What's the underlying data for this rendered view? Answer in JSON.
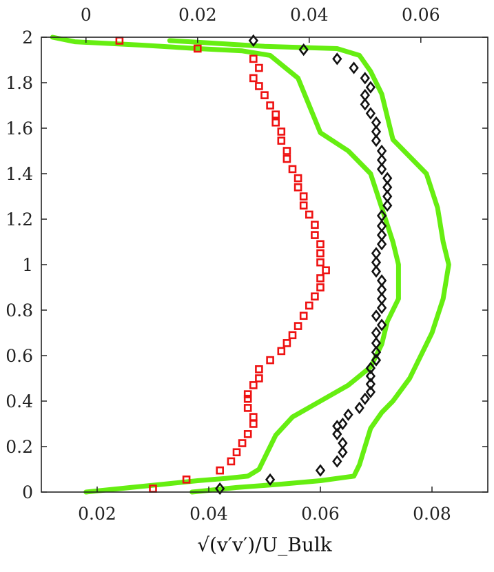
{
  "chart_data": {
    "type": "scatter",
    "xlabel": "√(v′v′)/U_Bulk",
    "ylabel": "",
    "ylim": [
      0,
      2
    ],
    "bottom_x_axis": {
      "range": [
        0.01,
        0.09
      ],
      "ticks": [
        0.02,
        0.04,
        0.06,
        0.08
      ],
      "tick_labels": [
        "0.02",
        "0.04",
        "0.06",
        "0.08"
      ]
    },
    "top_x_axis": {
      "range": [
        -0.008,
        0.072
      ],
      "ticks": [
        0,
        0.02,
        0.04,
        0.06
      ],
      "tick_labels": [
        "0",
        "0.02",
        "0.04",
        "0.06"
      ]
    },
    "y_ticks": [
      0,
      0.2,
      0.4,
      0.6,
      0.8,
      1,
      1.2,
      1.4,
      1.6,
      1.8,
      2
    ],
    "y_tick_labels": [
      "0",
      "0.2",
      "0.4",
      "0.6",
      "0.8",
      "1",
      "1.2",
      "1.4",
      "1.6",
      "1.8",
      "2"
    ],
    "grid": false,
    "series": [
      {
        "kind": "markers-square",
        "axis": "top",
        "color": "#ee1111",
        "points": [
          [
            0.012,
            0.015
          ],
          [
            0.018,
            0.055
          ],
          [
            0.024,
            0.095
          ],
          [
            0.026,
            0.135
          ],
          [
            0.027,
            0.175
          ],
          [
            0.028,
            0.215
          ],
          [
            0.029,
            0.255
          ],
          [
            0.03,
            0.3
          ],
          [
            0.03,
            0.33
          ],
          [
            0.029,
            0.37
          ],
          [
            0.029,
            0.41
          ],
          [
            0.029,
            0.43
          ],
          [
            0.03,
            0.47
          ],
          [
            0.031,
            0.5
          ],
          [
            0.031,
            0.54
          ],
          [
            0.033,
            0.58
          ],
          [
            0.035,
            0.62
          ],
          [
            0.036,
            0.655
          ],
          [
            0.037,
            0.69
          ],
          [
            0.038,
            0.73
          ],
          [
            0.039,
            0.775
          ],
          [
            0.04,
            0.82
          ],
          [
            0.041,
            0.86
          ],
          [
            0.042,
            0.9
          ],
          [
            0.042,
            0.94
          ],
          [
            0.043,
            0.975
          ],
          [
            0.042,
            1.01
          ],
          [
            0.042,
            1.05
          ],
          [
            0.042,
            1.09
          ],
          [
            0.041,
            1.13
          ],
          [
            0.041,
            1.175
          ],
          [
            0.04,
            1.22
          ],
          [
            0.039,
            1.26
          ],
          [
            0.039,
            1.3
          ],
          [
            0.038,
            1.34
          ],
          [
            0.038,
            1.38
          ],
          [
            0.037,
            1.42
          ],
          [
            0.036,
            1.465
          ],
          [
            0.036,
            1.5
          ],
          [
            0.035,
            1.545
          ],
          [
            0.035,
            1.585
          ],
          [
            0.034,
            1.625
          ],
          [
            0.034,
            1.66
          ],
          [
            0.033,
            1.7
          ],
          [
            0.032,
            1.745
          ],
          [
            0.031,
            1.785
          ],
          [
            0.03,
            1.82
          ],
          [
            0.031,
            1.865
          ],
          [
            0.03,
            1.905
          ],
          [
            0.02,
            1.95
          ],
          [
            0.006,
            1.985
          ]
        ]
      },
      {
        "kind": "markers-diamond",
        "axis": "bottom",
        "color": "#111111",
        "points": [
          [
            0.042,
            0.015
          ],
          [
            0.051,
            0.055
          ],
          [
            0.06,
            0.095
          ],
          [
            0.063,
            0.135
          ],
          [
            0.064,
            0.175
          ],
          [
            0.064,
            0.215
          ],
          [
            0.063,
            0.255
          ],
          [
            0.063,
            0.29
          ],
          [
            0.064,
            0.3
          ],
          [
            0.065,
            0.34
          ],
          [
            0.067,
            0.37
          ],
          [
            0.068,
            0.41
          ],
          [
            0.069,
            0.44
          ],
          [
            0.069,
            0.475
          ],
          [
            0.069,
            0.51
          ],
          [
            0.069,
            0.545
          ],
          [
            0.07,
            0.58
          ],
          [
            0.07,
            0.615
          ],
          [
            0.07,
            0.655
          ],
          [
            0.07,
            0.7
          ],
          [
            0.071,
            0.735
          ],
          [
            0.07,
            0.775
          ],
          [
            0.071,
            0.81
          ],
          [
            0.071,
            0.85
          ],
          [
            0.071,
            0.89
          ],
          [
            0.071,
            0.93
          ],
          [
            0.07,
            0.97
          ],
          [
            0.07,
            1.01
          ],
          [
            0.07,
            1.05
          ],
          [
            0.071,
            1.09
          ],
          [
            0.071,
            1.13
          ],
          [
            0.071,
            1.17
          ],
          [
            0.071,
            1.215
          ],
          [
            0.072,
            1.26
          ],
          [
            0.072,
            1.3
          ],
          [
            0.072,
            1.34
          ],
          [
            0.072,
            1.38
          ],
          [
            0.071,
            1.42
          ],
          [
            0.071,
            1.46
          ],
          [
            0.071,
            1.5
          ],
          [
            0.07,
            1.545
          ],
          [
            0.07,
            1.585
          ],
          [
            0.07,
            1.625
          ],
          [
            0.069,
            1.665
          ],
          [
            0.068,
            1.705
          ],
          [
            0.068,
            1.745
          ],
          [
            0.069,
            1.78
          ],
          [
            0.068,
            1.82
          ],
          [
            0.066,
            1.865
          ],
          [
            0.063,
            1.905
          ],
          [
            0.057,
            1.945
          ],
          [
            0.048,
            1.985
          ]
        ]
      },
      {
        "kind": "line",
        "axis": "top",
        "color": "#66ee11",
        "points": [
          [
            0.0,
            0.0
          ],
          [
            0.008,
            0.02
          ],
          [
            0.014,
            0.035
          ],
          [
            0.02,
            0.05
          ],
          [
            0.025,
            0.06
          ],
          [
            0.029,
            0.07
          ],
          [
            0.031,
            0.1
          ],
          [
            0.032,
            0.15
          ],
          [
            0.034,
            0.25
          ],
          [
            0.037,
            0.33
          ],
          [
            0.042,
            0.4
          ],
          [
            0.047,
            0.47
          ],
          [
            0.051,
            0.55
          ],
          [
            0.053,
            0.65
          ],
          [
            0.054,
            0.75
          ],
          [
            0.056,
            0.85
          ],
          [
            0.056,
            1.0
          ],
          [
            0.055,
            1.1
          ],
          [
            0.053,
            1.25
          ],
          [
            0.051,
            1.4
          ],
          [
            0.047,
            1.5
          ],
          [
            0.042,
            1.58
          ],
          [
            0.04,
            1.7
          ],
          [
            0.038,
            1.82
          ],
          [
            0.035,
            1.88
          ],
          [
            0.033,
            1.92
          ],
          [
            0.028,
            1.94
          ],
          [
            0.02,
            1.95
          ],
          [
            0.01,
            1.965
          ],
          [
            -0.002,
            1.98
          ],
          [
            -0.006,
            2.0
          ]
        ]
      },
      {
        "kind": "line",
        "axis": "bottom",
        "color": "#66ee11",
        "points": [
          [
            0.037,
            0.0
          ],
          [
            0.045,
            0.02
          ],
          [
            0.053,
            0.035
          ],
          [
            0.06,
            0.05
          ],
          [
            0.066,
            0.07
          ],
          [
            0.067,
            0.12
          ],
          [
            0.068,
            0.2
          ],
          [
            0.069,
            0.28
          ],
          [
            0.071,
            0.35
          ],
          [
            0.073,
            0.4
          ],
          [
            0.076,
            0.5
          ],
          [
            0.078,
            0.6
          ],
          [
            0.08,
            0.7
          ],
          [
            0.082,
            0.85
          ],
          [
            0.083,
            1.0
          ],
          [
            0.082,
            1.1
          ],
          [
            0.081,
            1.25
          ],
          [
            0.079,
            1.4
          ],
          [
            0.075,
            1.5
          ],
          [
            0.073,
            1.55
          ],
          [
            0.072,
            1.65
          ],
          [
            0.071,
            1.75
          ],
          [
            0.069,
            1.85
          ],
          [
            0.067,
            1.92
          ],
          [
            0.063,
            1.95
          ],
          [
            0.05,
            1.96
          ],
          [
            0.04,
            1.975
          ],
          [
            0.033,
            1.985
          ]
        ]
      }
    ]
  }
}
